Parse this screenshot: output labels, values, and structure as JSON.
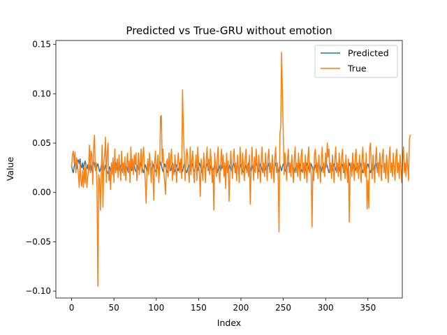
{
  "chart_data": {
    "type": "line",
    "title": "Predicted vs True-GRU without emotion",
    "xlabel": "Index",
    "ylabel": "Value",
    "xlim": [
      -18.6,
      390.6
    ],
    "ylim": [
      -0.107,
      0.154
    ],
    "xticks": [
      0,
      50,
      100,
      150,
      200,
      250,
      300,
      350
    ],
    "yticks": [
      -0.1,
      -0.05,
      0.0,
      0.05,
      0.1,
      0.15
    ],
    "ytick_labels": [
      "−0.10",
      "−0.05",
      "0.00",
      "0.05",
      "0.10",
      "0.15"
    ],
    "legend_position": "upper-right",
    "series": [
      {
        "name": "Predicted",
        "color": "#1f77b4",
        "values": [
          0.027,
          0.022,
          0.02,
          0.026,
          0.03,
          0.028,
          0.024,
          0.031,
          0.033,
          0.029,
          0.034,
          0.027,
          0.025,
          0.03,
          0.023,
          0.029,
          0.032,
          0.026,
          0.024,
          0.028,
          0.022,
          0.025,
          0.03,
          0.027,
          0.021,
          0.026,
          0.031,
          0.028,
          0.024,
          0.022,
          0.027,
          0.029,
          0.025,
          0.021,
          0.023,
          0.027,
          0.03,
          0.026,
          0.022,
          0.024,
          0.028,
          0.025,
          0.021,
          0.019,
          0.023,
          0.026,
          0.022,
          0.025,
          0.028,
          0.024,
          0.021,
          0.026,
          0.03,
          0.027,
          0.023,
          0.02,
          0.024,
          0.028,
          0.025,
          0.022,
          0.026,
          0.029,
          0.024,
          0.021,
          0.025,
          0.027,
          0.023,
          0.02,
          0.024,
          0.028,
          0.026,
          0.022,
          0.025,
          0.029,
          0.027,
          0.023,
          0.021,
          0.025,
          0.028,
          0.024,
          0.022,
          0.026,
          0.03,
          0.027,
          0.023,
          0.02,
          0.024,
          0.028,
          0.025,
          0.021,
          0.023,
          0.027,
          0.03,
          0.026,
          0.022,
          0.025,
          0.029,
          0.026,
          0.023,
          0.021,
          0.024,
          0.028,
          0.025,
          0.022,
          0.026,
          0.031,
          0.028,
          0.024,
          0.021,
          0.025,
          0.029,
          0.026,
          0.023,
          0.02,
          0.024,
          0.027,
          0.025,
          0.022,
          0.026,
          0.03,
          0.027,
          0.023,
          0.021,
          0.025,
          0.028,
          0.024,
          0.022,
          0.026,
          0.03,
          0.027,
          0.024,
          0.021,
          0.025,
          0.029,
          0.026,
          0.022,
          0.02,
          0.024,
          0.028,
          0.025,
          0.022,
          0.026,
          0.03,
          0.027,
          0.023,
          0.021,
          0.025,
          0.028,
          0.024,
          0.022,
          0.026,
          0.03,
          0.027,
          0.023,
          0.02,
          0.024,
          0.028,
          0.025,
          0.022,
          0.026,
          0.029,
          0.026,
          0.023,
          0.021,
          0.025,
          0.028,
          0.024,
          0.021,
          0.025,
          0.029,
          0.027,
          0.023,
          0.02,
          0.024,
          0.028,
          0.025,
          0.022,
          0.026,
          0.03,
          0.027,
          0.023,
          0.021,
          0.025,
          0.029,
          0.026,
          0.022,
          0.025,
          0.028,
          0.025,
          0.022,
          0.026,
          0.03,
          0.027,
          0.023,
          0.02,
          0.024,
          0.028,
          0.025,
          0.022,
          0.026,
          0.029,
          0.026,
          0.022,
          0.02,
          0.024,
          0.028,
          0.025,
          0.022,
          0.026,
          0.03,
          0.027,
          0.023,
          0.021,
          0.025,
          0.028,
          0.024,
          0.022,
          0.026,
          0.03,
          0.027,
          0.024,
          0.021,
          0.025,
          0.029,
          0.026,
          0.023,
          0.02,
          0.024,
          0.028,
          0.025,
          0.022,
          0.026,
          0.03,
          0.027,
          0.023,
          0.021,
          0.025,
          0.028,
          0.024,
          0.022,
          0.026,
          0.03,
          0.027,
          0.023,
          0.02,
          0.024,
          0.028,
          0.025,
          0.022,
          0.026,
          0.029,
          0.026,
          0.023,
          0.021,
          0.025,
          0.031,
          0.028,
          0.024,
          0.021,
          0.025,
          0.029,
          0.026,
          0.022,
          0.02,
          0.024,
          0.028,
          0.025,
          0.022,
          0.026,
          0.03,
          0.027,
          0.023,
          0.021,
          0.025,
          0.028,
          0.024,
          0.022,
          0.026,
          0.03,
          0.027,
          0.024,
          0.021,
          0.025,
          0.029,
          0.026,
          0.022,
          0.02,
          0.024,
          0.028,
          0.025,
          0.022,
          0.026,
          0.03,
          0.027,
          0.023,
          0.021,
          0.025,
          0.028,
          0.024,
          0.022,
          0.026,
          0.03,
          0.027,
          0.023,
          0.02,
          0.024,
          0.028,
          0.025,
          0.022,
          0.026,
          0.029,
          0.026,
          0.023,
          0.021,
          0.025,
          0.028,
          0.024,
          0.021,
          0.025,
          0.029,
          0.027,
          0.023,
          0.02,
          0.024,
          0.028,
          0.025,
          0.022,
          0.026,
          0.03,
          0.027,
          0.023,
          0.021,
          0.025,
          0.029,
          0.026,
          0.022,
          0.025,
          0.028,
          0.025,
          0.022,
          0.026,
          0.03,
          0.027,
          0.023,
          0.02,
          0.024,
          0.028,
          0.025,
          0.022,
          0.026,
          0.029,
          0.026,
          0.022,
          0.02,
          0.024,
          0.028,
          0.025,
          0.022,
          0.026,
          0.03,
          0.027,
          0.023,
          0.025,
          0.029,
          0.032,
          0.028,
          0.024,
          0.027
        ]
      },
      {
        "name": "True",
        "color": "#ff7f0e",
        "values": [
          0.026,
          0.038,
          0.042,
          0.03,
          0.041,
          0.02,
          0.035,
          0.028,
          0.018,
          0.005,
          0.03,
          0.012,
          0.006,
          0.022,
          0.005,
          0.026,
          0.009,
          0.03,
          0.005,
          0.015,
          0.025,
          0.048,
          0.02,
          0.042,
          0.038,
          0.008,
          0.046,
          0.058,
          0.022,
          0.03,
          0.005,
          -0.095,
          0.018,
          0.012,
          -0.018,
          0.02,
          0.048,
          -0.015,
          0.03,
          0.038,
          0.056,
          0.01,
          0.04,
          0.05,
          0.012,
          0.022,
          0.003,
          0.03,
          0.018,
          0.035,
          0.01,
          0.044,
          0.02,
          0.026,
          0.034,
          0.015,
          0.038,
          0.024,
          0.012,
          0.042,
          0.02,
          0.03,
          0.017,
          0.036,
          0.012,
          0.028,
          0.04,
          0.02,
          0.032,
          0.01,
          0.046,
          0.024,
          0.034,
          0.018,
          0.038,
          0.028,
          0.04,
          0.012,
          0.024,
          0.04,
          0.018,
          0.03,
          0.044,
          0.02,
          0.036,
          0.046,
          0.024,
          0.012,
          -0.011,
          0.022,
          0.034,
          0.018,
          0.04,
          0.028,
          0.01,
          0.032,
          0.022,
          -0.008,
          0.03,
          0.042,
          0.016,
          0.028,
          0.038,
          0.01,
          0.024,
          0.077,
          0.078,
          0.03,
          0.044,
          0.02,
          0.01,
          -0.002,
          0.03,
          0.034,
          0.016,
          0.04,
          0.022,
          0.034,
          0.044,
          0.012,
          0.028,
          0.018,
          0.038,
          0.024,
          0.01,
          0.03,
          0.04,
          0.026,
          0.02,
          0.034,
          0.014,
          0.104,
          0.062,
          0.04,
          0.012,
          0.03,
          0.044,
          0.038,
          0.02,
          0.01,
          0.046,
          0.018,
          0.032,
          0.042,
          0.02,
          0.01,
          0.028,
          0.038,
          0.012,
          0.046,
          0.03,
          0.018,
          -0.004,
          0.034,
          0.024,
          0.012,
          0.04,
          0.028,
          0.01,
          0.032,
          0.046,
          0.022,
          0.034,
          0.018,
          0.044,
          0.03,
          0.01,
          0.024,
          -0.018,
          0.04,
          0.026,
          0.016,
          0.034,
          0.046,
          0.02,
          0.01,
          0.03,
          0.044,
          0.024,
          0.038,
          0.016,
          0.03,
          0.004,
          0.04,
          0.02,
          0.032,
          -0.009,
          0.018,
          0.042,
          0.026,
          0.014,
          0.036,
          0.044,
          0.02,
          0.03,
          0.012,
          0.038,
          0.024,
          0.01,
          0.046,
          0.03,
          0.018,
          0.04,
          0.026,
          0.012,
          0.034,
          0.044,
          0.02,
          0.028,
          0.016,
          0.038,
          -0.012,
          0.024,
          0.046,
          0.03,
          0.012,
          0.036,
          0.02,
          0.044,
          0.03,
          0.014,
          0.038,
          0.024,
          0.01,
          0.034,
          0.046,
          0.02,
          0.03,
          0.016,
          0.04,
          0.026,
          0.012,
          0.036,
          0.044,
          0.02,
          0.03,
          0.014,
          0.038,
          0.024,
          0.01,
          0.034,
          0.046,
          0.02,
          0.03,
          0.016,
          -0.04,
          0.06,
          0.066,
          0.142,
          0.1,
          0.06,
          0.018,
          0.04,
          0.026,
          0.012,
          0.034,
          0.044,
          0.02,
          0.03,
          0.016,
          0.038,
          0.024,
          0.01,
          0.034,
          0.046,
          0.02,
          0.03,
          0.016,
          0.04,
          0.026,
          0.012,
          0.036,
          0.044,
          0.02,
          0.03,
          0.014,
          0.038,
          0.024,
          0.01,
          0.034,
          0.046,
          0.02,
          0.03,
          0.016,
          -0.035,
          0.026,
          0.012,
          0.04,
          0.044,
          0.02,
          0.03,
          0.014,
          0.038,
          0.024,
          0.01,
          0.034,
          0.046,
          0.02,
          0.03,
          0.016,
          0.04,
          0.026,
          0.05,
          0.036,
          0.044,
          0.02,
          0.03,
          0.014,
          0.038,
          0.024,
          0.01,
          0.034,
          0.046,
          0.02,
          0.03,
          0.016,
          0.04,
          0.026,
          0.012,
          0.036,
          0.044,
          0.02,
          0.03,
          0.014,
          0.038,
          0.024,
          0.01,
          0.034,
          -0.03,
          0.02,
          0.03,
          0.016,
          0.04,
          0.026,
          0.012,
          0.036,
          0.044,
          0.02,
          0.03,
          0.014,
          0.038,
          0.024,
          0.01,
          0.034,
          0.046,
          0.02,
          0.03,
          0.016,
          0.04,
          -0.017,
          0.012,
          -0.016,
          0.044,
          0.05,
          0.03,
          0.014,
          0.038,
          0.024,
          0.01,
          0.034,
          0.046,
          0.02,
          0.03,
          0.016,
          0.04,
          0.026,
          0.012,
          0.036,
          0.044,
          0.02,
          0.03,
          0.014,
          0.038,
          0.024,
          0.01,
          0.034,
          0.046,
          0.02,
          0.03,
          0.016,
          0.04,
          0.026,
          0.012,
          0.036,
          0.044,
          0.02,
          0.03,
          0.014,
          0.038,
          0.024,
          0.01,
          0.034,
          0.046,
          0.02,
          0.03,
          0.016,
          0.04,
          0.026,
          0.012,
          0.054,
          0.058
        ]
      }
    ]
  }
}
